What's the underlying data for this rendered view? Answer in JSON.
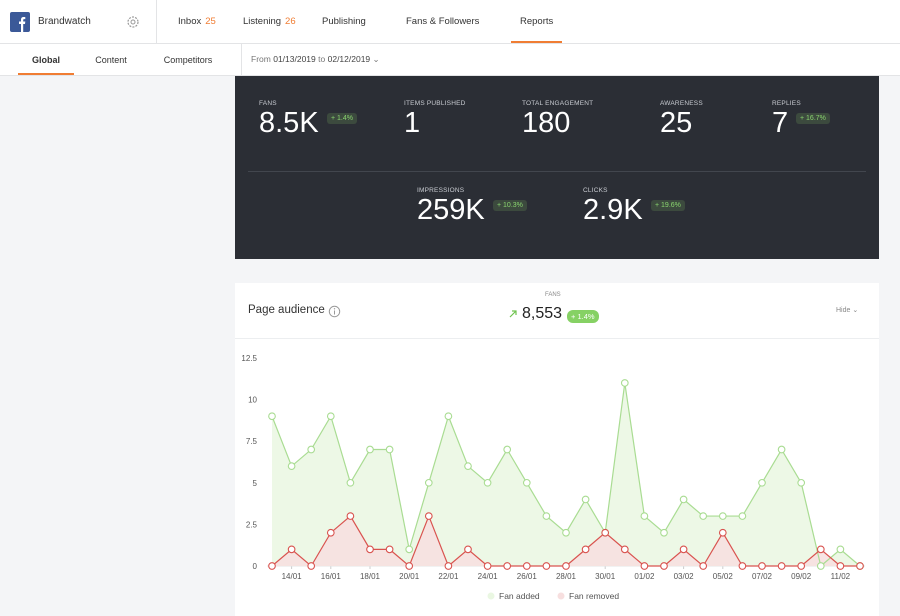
{
  "header": {
    "brand": "Brandwatch",
    "nav": [
      {
        "label": "Inbox",
        "count": "25"
      },
      {
        "label": "Listening",
        "count": "26"
      },
      {
        "label": "Publishing"
      },
      {
        "label": "Fans & Followers"
      },
      {
        "label": "Reports"
      }
    ]
  },
  "subnav": {
    "tabs": [
      "Global",
      "Content",
      "Competitors"
    ],
    "range": {
      "from_label": "From",
      "from": "01/13/2019",
      "to_label": "to",
      "to": "02/12/2019"
    }
  },
  "stats": {
    "row1": [
      {
        "label": "FANS",
        "value": "8.5K",
        "change": "+ 1.4%"
      },
      {
        "label": "ITEMS PUBLISHED",
        "value": "1"
      },
      {
        "label": "TOTAL ENGAGEMENT",
        "value": "180"
      },
      {
        "label": "AWARENESS",
        "value": "25"
      },
      {
        "label": "REPLIES",
        "value": "7",
        "change": "+ 16.7%"
      }
    ],
    "row2": [
      {
        "label": "IMPRESSIONS",
        "value": "259K",
        "change": "+ 10.3%"
      },
      {
        "label": "CLICKS",
        "value": "2.9K",
        "change": "+ 19.6%"
      }
    ]
  },
  "audience": {
    "title": "Page audience",
    "kpi_label": "FANS",
    "kpi_value": "8,553",
    "kpi_change": "+ 1.4%",
    "hide": "Hide"
  },
  "chart_data": {
    "type": "area",
    "categories": [
      null,
      "14/01",
      null,
      "16/01",
      null,
      "18/01",
      null,
      "20/01",
      null,
      "22/01",
      null,
      "24/01",
      null,
      "26/01",
      null,
      "28/01",
      null,
      "30/01",
      null,
      "01/02",
      null,
      "03/02",
      null,
      "05/02",
      null,
      "07/02",
      null,
      "09/02",
      null,
      "11/02",
      null
    ],
    "series": [
      {
        "name": "Fan added",
        "color": "#a9dc92",
        "values": [
          9,
          6,
          7,
          9,
          5,
          7,
          7,
          1,
          5,
          9,
          6,
          5,
          7,
          5,
          3,
          2,
          4,
          2,
          11,
          3,
          2,
          4,
          3,
          3,
          3,
          5,
          7,
          5,
          0,
          1,
          0
        ]
      },
      {
        "name": "Fan removed",
        "color": "#d9534f",
        "values": [
          0,
          1,
          0,
          2,
          3,
          1,
          1,
          0,
          3,
          0,
          1,
          0,
          0,
          0,
          0,
          0,
          1,
          2,
          1,
          0,
          0,
          1,
          0,
          2,
          0,
          0,
          0,
          0,
          1,
          0,
          0
        ]
      }
    ],
    "ylim": [
      0,
      12.5
    ],
    "yticks": [
      0,
      2.5,
      5,
      7.5,
      10,
      12.5
    ],
    "legend": "bottom"
  }
}
